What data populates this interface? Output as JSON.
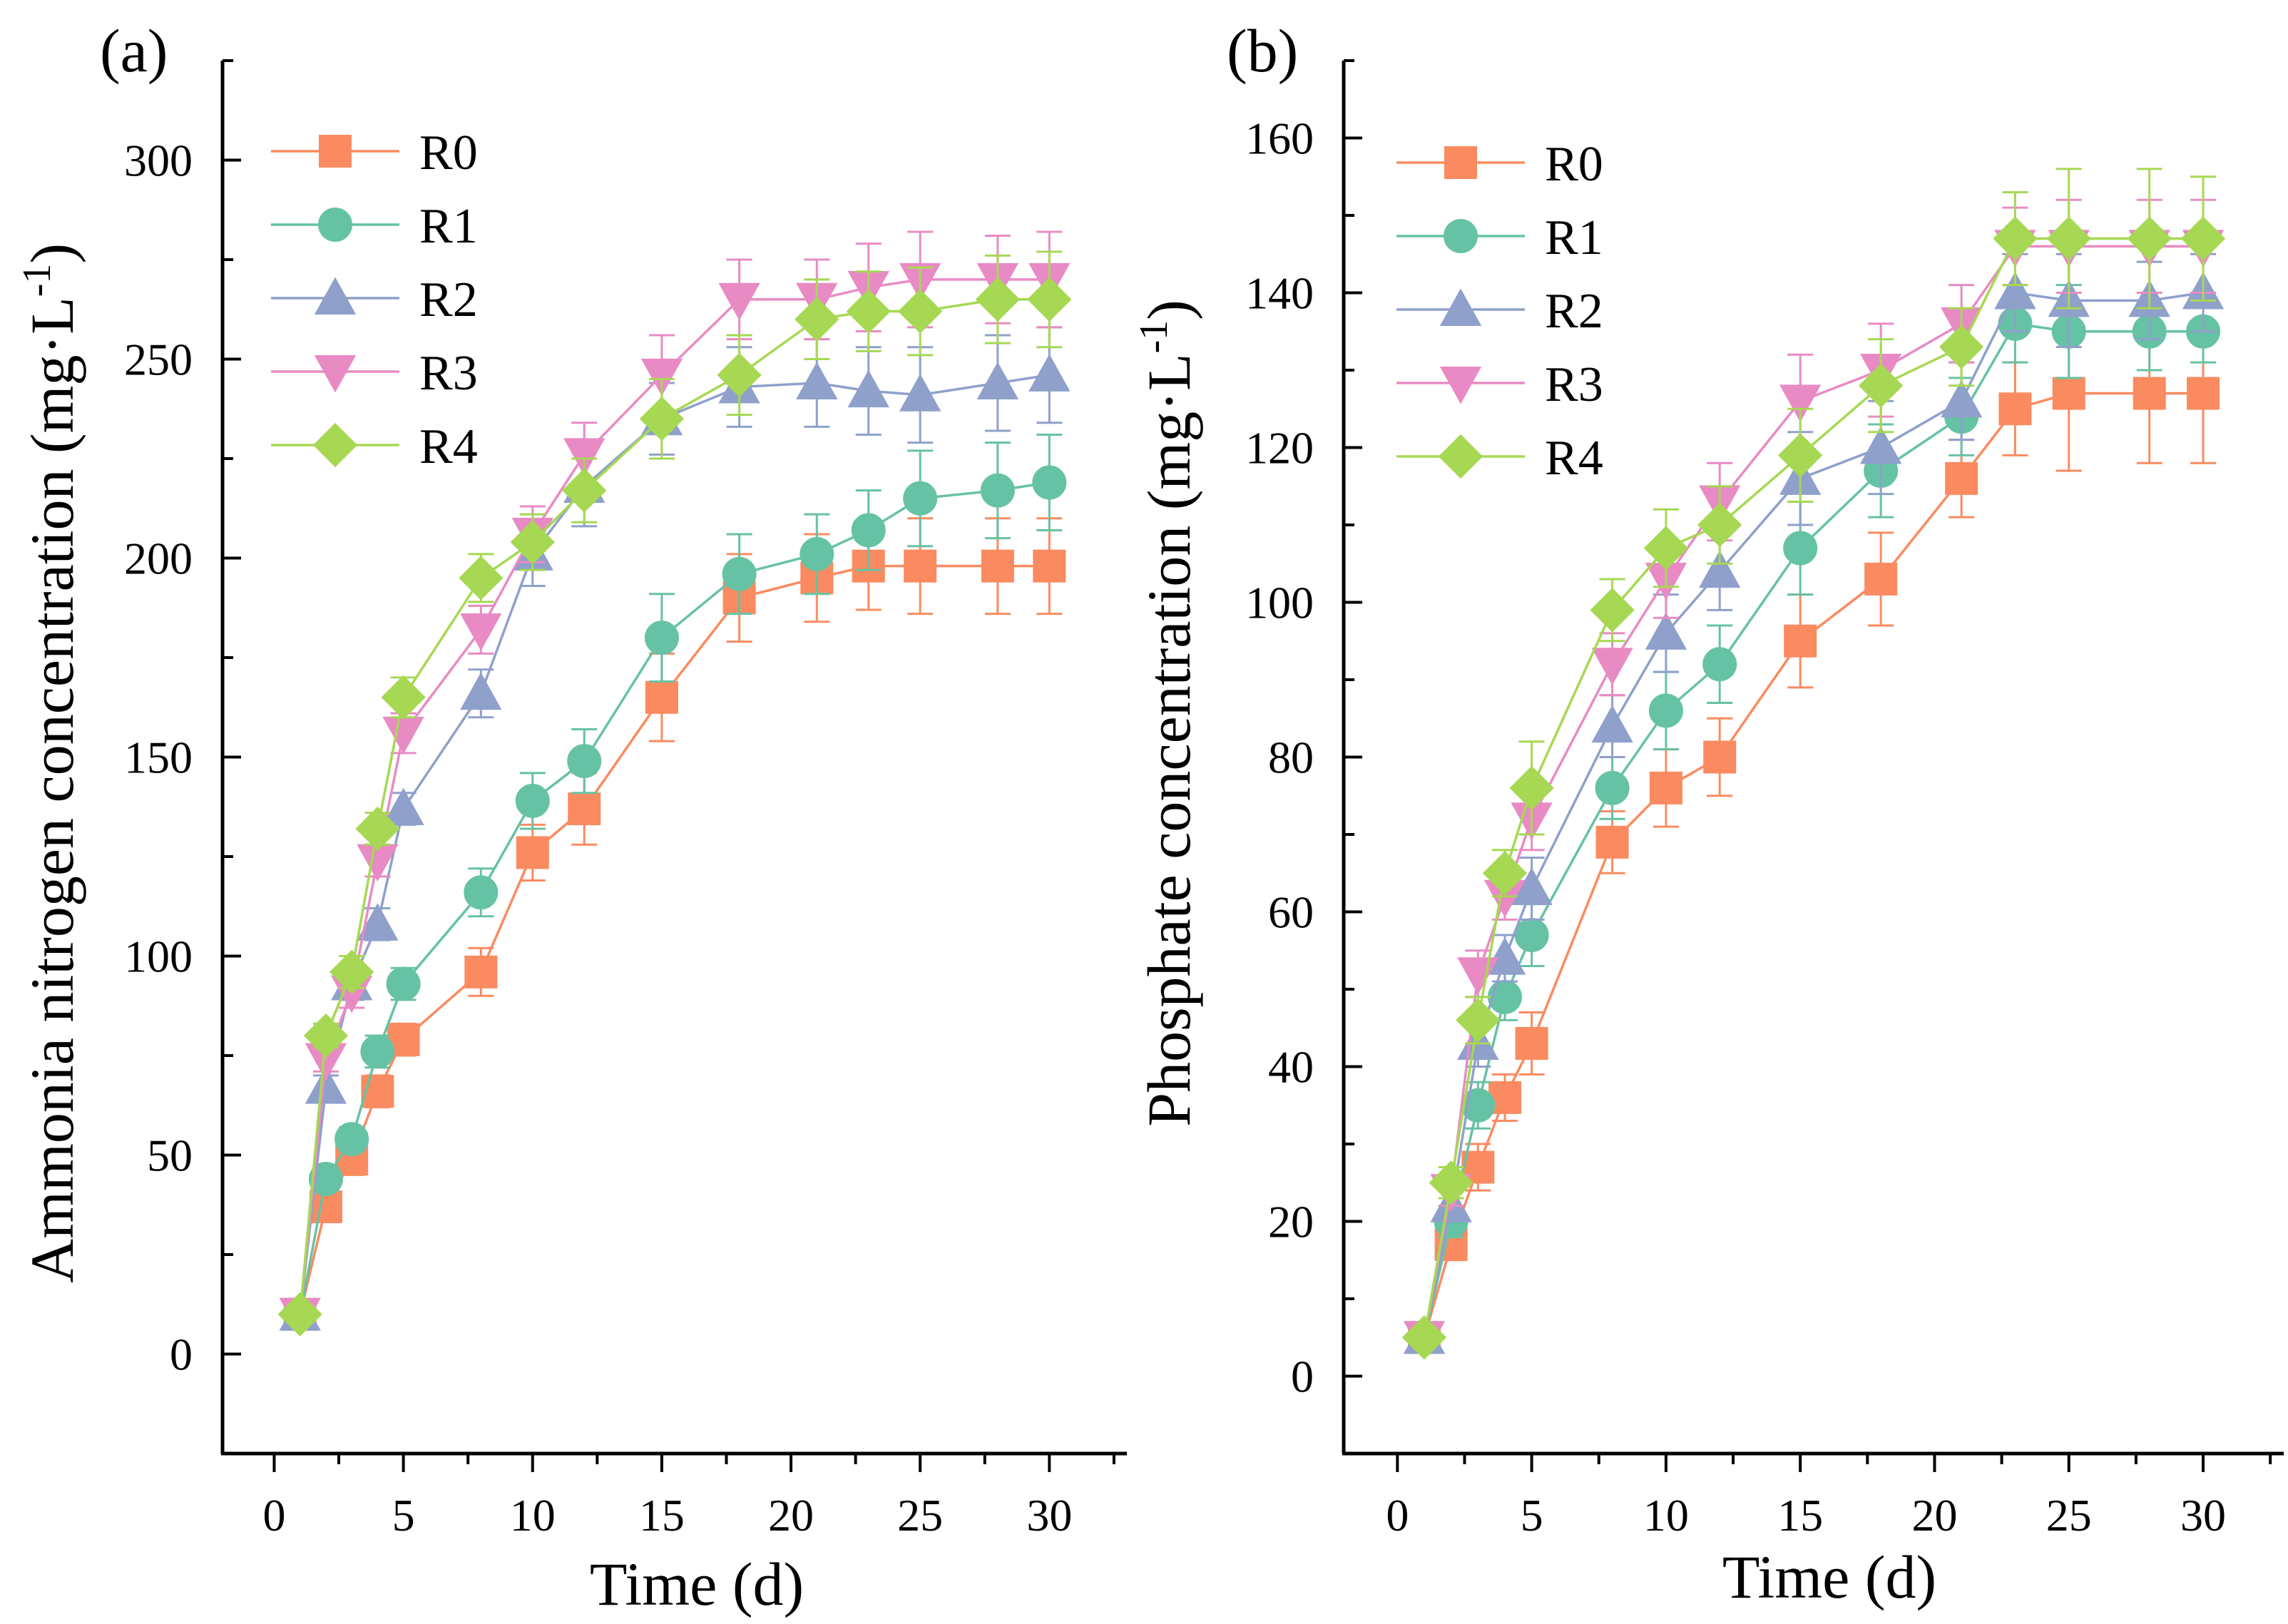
{
  "colors": {
    "R0": "#fa8b60",
    "R1": "#66c2a4",
    "R2": "#8fa0cb",
    "R3": "#e88bc4",
    "R4": "#a6d853",
    "axis": "#000000"
  },
  "chart_data": [
    {
      "type": "line",
      "panel_label": "(a)",
      "title": "",
      "xlabel": "Time (d)",
      "ylabel_main": "Ammonia nitrogen concentration (mg·L",
      "ylabel_sup": "-1",
      "ylabel_close": ")",
      "xlim": [
        -2,
        33
      ],
      "ylim": [
        -25,
        325
      ],
      "x_ticks": [
        0,
        5,
        10,
        15,
        20,
        25,
        30
      ],
      "y_ticks": [
        0,
        50,
        100,
        150,
        200,
        250,
        300
      ],
      "x_tick_labels": [
        "0",
        "5",
        "10",
        "15",
        "20",
        "25",
        "30"
      ],
      "y_tick_labels": [
        "0",
        "50",
        "100",
        "150",
        "200",
        "250",
        "300"
      ],
      "legend_position": "top-left",
      "x": [
        1,
        2,
        3,
        4,
        5,
        8,
        10,
        12,
        15,
        18,
        21,
        23,
        25,
        28,
        30
      ],
      "series": [
        {
          "name": "R0",
          "marker": "square",
          "values": [
            10,
            37,
            49,
            66,
            79,
            96,
            126,
            137,
            165,
            190,
            195,
            198,
            198,
            198,
            198
          ],
          "errors": [
            2,
            3,
            4,
            4,
            4,
            6,
            7,
            9,
            11,
            11,
            11,
            11,
            12,
            12,
            12
          ]
        },
        {
          "name": "R1",
          "marker": "circle",
          "values": [
            10,
            44,
            54,
            76,
            93,
            116,
            139,
            149,
            180,
            196,
            201,
            207,
            215,
            217,
            219
          ],
          "errors": [
            2,
            3,
            3,
            4,
            4,
            6,
            7,
            8,
            11,
            10,
            10,
            10,
            12,
            12,
            12
          ]
        },
        {
          "name": "R2",
          "marker": "triangle-up",
          "values": [
            10,
            67,
            93,
            108,
            137,
            166,
            201,
            218,
            235,
            243,
            244,
            242,
            241,
            244,
            246
          ],
          "errors": [
            2,
            3,
            4,
            4,
            4,
            6,
            8,
            10,
            9,
            10,
            11,
            11,
            12,
            12,
            12
          ]
        },
        {
          "name": "R3",
          "marker": "triangle-down",
          "values": [
            10,
            74,
            91,
            124,
            156,
            182,
            206,
            226,
            246,
            265,
            265,
            268,
            270,
            270,
            270
          ],
          "errors": [
            2,
            3,
            4,
            4,
            5,
            6,
            7,
            8,
            10,
            10,
            10,
            11,
            12,
            11,
            12
          ]
        },
        {
          "name": "R4",
          "marker": "diamond",
          "values": [
            10,
            80,
            96,
            132,
            165,
            195,
            204,
            217,
            235,
            246,
            260,
            262,
            262,
            265,
            265
          ],
          "errors": [
            2,
            3,
            4,
            4,
            5,
            6,
            7,
            8,
            10,
            10,
            10,
            10,
            11,
            11,
            12
          ]
        }
      ]
    },
    {
      "type": "line",
      "panel_label": "(b)",
      "title": "",
      "xlabel": "Time (d)",
      "ylabel_main": "Phosphate concentration (mg·L",
      "ylabel_sup": "-1",
      "ylabel_close": ")",
      "xlim": [
        -2,
        33
      ],
      "ylim": [
        -10,
        170
      ],
      "x_ticks": [
        0,
        5,
        10,
        15,
        20,
        25,
        30
      ],
      "y_ticks": [
        0,
        20,
        40,
        60,
        80,
        100,
        120,
        140,
        160
      ],
      "x_tick_labels": [
        "0",
        "5",
        "10",
        "15",
        "20",
        "25",
        "30"
      ],
      "y_tick_labels": [
        "0",
        "20",
        "40",
        "60",
        "80",
        "100",
        "120",
        "140",
        "160"
      ],
      "legend_position": "top-left",
      "x": [
        1,
        2,
        3,
        4,
        5,
        8,
        10,
        12,
        15,
        18,
        21,
        23,
        25,
        28,
        30
      ],
      "series": [
        {
          "name": "R0",
          "marker": "square",
          "values": [
            5,
            17,
            27,
            36,
            43,
            69,
            76,
            80,
            95,
            103,
            116,
            125,
            127,
            127,
            127
          ],
          "errors": [
            1,
            2,
            3,
            3,
            4,
            4,
            5,
            5,
            6,
            6,
            5,
            6,
            10,
            9,
            9
          ]
        },
        {
          "name": "R1",
          "marker": "circle",
          "values": [
            5,
            20,
            35,
            49,
            57,
            76,
            86,
            92,
            107,
            117,
            124,
            136,
            135,
            135,
            135
          ],
          "errors": [
            1,
            2,
            3,
            3,
            4,
            4,
            5,
            5,
            6,
            6,
            5,
            5,
            6,
            5,
            4
          ]
        },
        {
          "name": "R2",
          "marker": "triangle-up",
          "values": [
            5,
            22,
            43,
            54,
            63,
            84,
            96,
            104,
            116,
            120,
            126,
            140,
            139,
            139,
            140
          ],
          "errors": [
            1,
            2,
            3,
            3,
            4,
            4,
            5,
            5,
            6,
            6,
            5,
            5,
            6,
            5,
            5
          ]
        },
        {
          "name": "R3",
          "marker": "triangle-down",
          "values": [
            5,
            24,
            52,
            62,
            72,
            92,
            103,
            113,
            126,
            130,
            136,
            146,
            146,
            146,
            146
          ],
          "errors": [
            1,
            2,
            3,
            3,
            4,
            4,
            5,
            5,
            6,
            6,
            5,
            5,
            6,
            6,
            6
          ]
        },
        {
          "name": "R4",
          "marker": "diamond",
          "values": [
            5,
            25,
            46,
            65,
            76,
            99,
            107,
            110,
            119,
            128,
            133,
            147,
            147,
            147,
            147
          ],
          "errors": [
            1,
            2,
            3,
            3,
            6,
            4,
            5,
            5,
            6,
            6,
            5,
            6,
            9,
            9,
            8
          ]
        }
      ]
    }
  ]
}
